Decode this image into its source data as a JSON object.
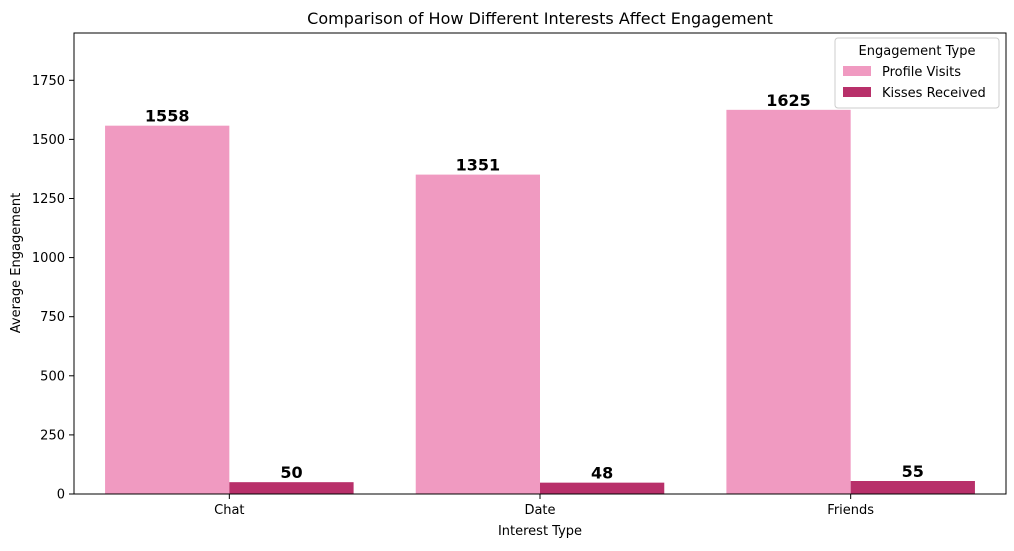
{
  "chart_data": {
    "type": "bar",
    "title": "Comparison of How Different Interests Affect Engagement",
    "xlabel": "Interest Type",
    "ylabel": "Average Engagement",
    "categories": [
      "Chat",
      "Date",
      "Friends"
    ],
    "series": [
      {
        "name": "Profile Visits",
        "values": [
          1558,
          1351,
          1625
        ],
        "color": "#f09ac1"
      },
      {
        "name": "Kisses Received",
        "values": [
          50,
          48,
          55
        ],
        "color": "#b8306a"
      }
    ],
    "ylim": [
      0,
      1950
    ],
    "yticks": [
      0,
      250,
      500,
      750,
      1000,
      1250,
      1500,
      1750
    ],
    "grid": false,
    "legend": {
      "title": "Engagement Type",
      "placement": "top-right"
    }
  }
}
